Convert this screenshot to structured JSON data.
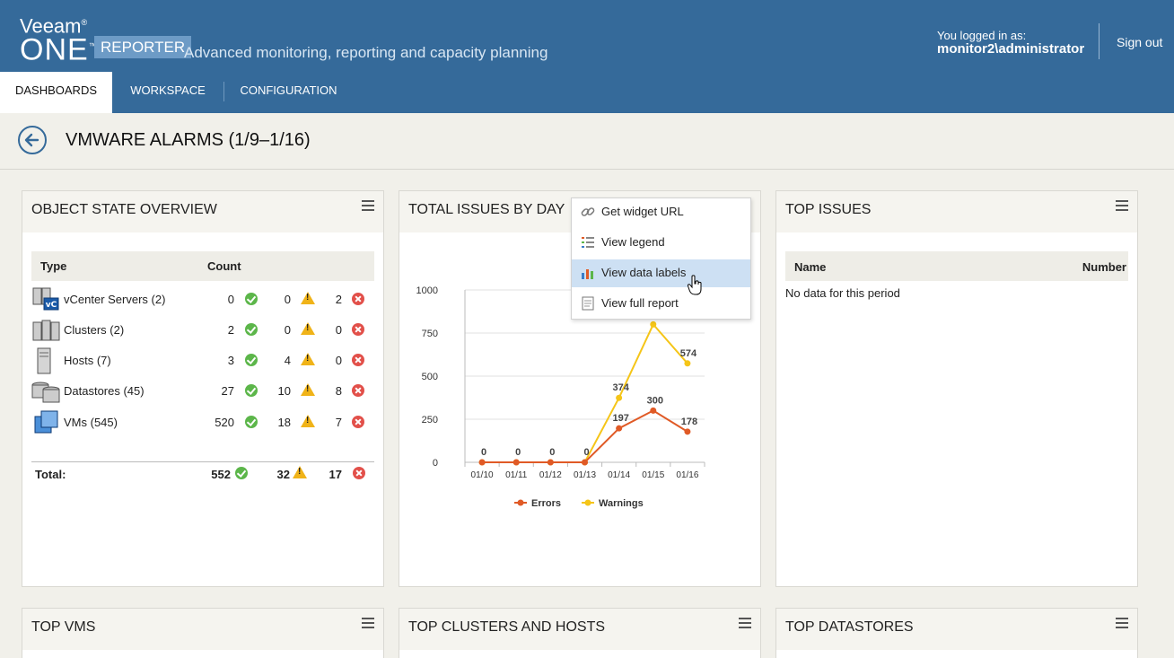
{
  "header": {
    "brand_veeam": "Veeam",
    "brand_one": "ONE",
    "brand_reporter": "REPORTER",
    "tagline": "Advanced monitoring, reporting and capacity planning",
    "login_label": "You logged in as:",
    "login_user": "monitor2\\administrator",
    "signout": "Sign out"
  },
  "nav": {
    "tabs": [
      {
        "label": "DASHBOARDS",
        "active": true
      },
      {
        "label": "WORKSPACE",
        "active": false
      },
      {
        "label": "CONFIGURATION",
        "active": false
      }
    ]
  },
  "page": {
    "title": "VMWARE ALARMS (1/9–1/16)"
  },
  "widgets": {
    "object_state": {
      "title": "OBJECT STATE OVERVIEW",
      "col_type": "Type",
      "col_count": "Count",
      "rows": [
        {
          "name": "vCenter Servers (2)",
          "ok": "0",
          "warn": "0",
          "err": "2",
          "icon": "vcenter-icon"
        },
        {
          "name": "Clusters (2)",
          "ok": "2",
          "warn": "0",
          "err": "0",
          "icon": "cluster-icon"
        },
        {
          "name": "Hosts (7)",
          "ok": "3",
          "warn": "4",
          "err": "0",
          "icon": "host-icon"
        },
        {
          "name": "Datastores (45)",
          "ok": "27",
          "warn": "10",
          "err": "8",
          "icon": "datastore-icon"
        },
        {
          "name": "VMs (545)",
          "ok": "520",
          "warn": "18",
          "err": "7",
          "icon": "vm-icon"
        }
      ],
      "total_label": "Total:",
      "total_ok": "552",
      "total_warn": "32",
      "total_err": "17"
    },
    "total_issues": {
      "title": "TOTAL ISSUES BY DAY"
    },
    "top_issues": {
      "title": "TOP ISSUES",
      "col_name": "Name",
      "col_number": "Number",
      "empty": "No data for this period"
    },
    "top_vms": {
      "title": "TOP VMS"
    },
    "top_clusters": {
      "title": "TOP CLUSTERS AND HOSTS"
    },
    "top_datastores": {
      "title": "TOP DATASTORES"
    }
  },
  "context_menu": {
    "items": [
      {
        "label": "Get widget URL",
        "icon": "link-icon"
      },
      {
        "label": "View legend",
        "icon": "legend-icon"
      },
      {
        "label": "View data labels",
        "icon": "bar-chart-icon"
      },
      {
        "label": "View full report",
        "icon": "report-icon"
      }
    ]
  },
  "colors": {
    "errors": "#e05a26",
    "warnings": "#f5c518",
    "header": "#356a9a"
  },
  "chart_data": {
    "type": "line",
    "categories": [
      "01/10",
      "01/11",
      "01/12",
      "01/13",
      "01/14",
      "01/15",
      "01/16"
    ],
    "series": [
      {
        "name": "Errors",
        "values": [
          0,
          0,
          0,
          0,
          197,
          300,
          178
        ],
        "labels": [
          "0",
          "0",
          "0",
          "0",
          "197",
          "300",
          "178"
        ]
      },
      {
        "name": "Warnings",
        "values": [
          0,
          0,
          0,
          0,
          374,
          800,
          574
        ],
        "labels": [
          "",
          "",
          "",
          "",
          "374",
          "",
          "574"
        ]
      }
    ],
    "yticks": [
      "0",
      "250",
      "500",
      "750",
      "1000"
    ],
    "ylim": [
      0,
      1000
    ],
    "legend": "bottom",
    "grid": true
  }
}
